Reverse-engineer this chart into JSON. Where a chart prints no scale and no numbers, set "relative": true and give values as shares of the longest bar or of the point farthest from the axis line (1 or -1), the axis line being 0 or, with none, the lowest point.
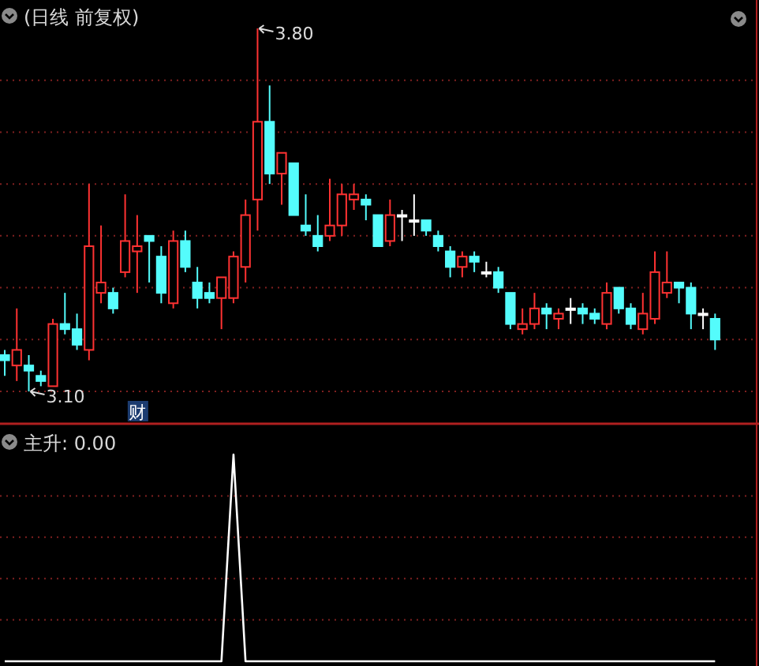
{
  "chart_data": [
    {
      "type": "candlestick",
      "title": "(日线 前复权)",
      "grid": "y",
      "categories": [
        null,
        null,
        null,
        null,
        null,
        null,
        null,
        null,
        null,
        null,
        null,
        null,
        null,
        null,
        null,
        null,
        null,
        null,
        null,
        null,
        null,
        null,
        null,
        null,
        null,
        null,
        null,
        null,
        null,
        null,
        null,
        null,
        null,
        null,
        null,
        null,
        null,
        null,
        null,
        null,
        null,
        null,
        null,
        null,
        null,
        null,
        null,
        null,
        null,
        null,
        null,
        null,
        null,
        null,
        null,
        null,
        null,
        null,
        null,
        null
      ],
      "yticks": [
        {
          "value": 3.1,
          "label": null
        },
        {
          "value": 3.2,
          "label": null
        },
        {
          "value": 3.3,
          "label": null
        },
        {
          "value": 3.4,
          "label": null
        },
        {
          "value": 3.5,
          "label": null
        },
        {
          "value": 3.6,
          "label": null
        },
        {
          "value": 3.7,
          "label": null
        }
      ],
      "ohlc": [
        [
          3.17,
          3.18,
          3.13,
          3.16
        ],
        [
          3.15,
          3.26,
          3.12,
          3.18
        ],
        [
          3.15,
          3.17,
          3.1,
          3.14
        ],
        [
          3.13,
          3.14,
          3.11,
          3.12
        ],
        [
          3.11,
          3.24,
          3.11,
          3.23
        ],
        [
          3.23,
          3.29,
          3.21,
          3.22
        ],
        [
          3.22,
          3.25,
          3.18,
          3.19
        ],
        [
          3.18,
          3.5,
          3.16,
          3.38
        ],
        [
          3.29,
          3.42,
          3.27,
          3.31
        ],
        [
          3.29,
          3.3,
          3.25,
          3.26
        ],
        [
          3.33,
          3.48,
          3.32,
          3.39
        ],
        [
          3.37,
          3.44,
          3.29,
          3.38
        ],
        [
          3.4,
          3.4,
          3.31,
          3.39
        ],
        [
          3.36,
          3.38,
          3.27,
          3.29
        ],
        [
          3.27,
          3.41,
          3.26,
          3.39
        ],
        [
          3.39,
          3.41,
          3.33,
          3.34
        ],
        [
          3.31,
          3.34,
          3.26,
          3.28
        ],
        [
          3.29,
          3.31,
          3.27,
          3.28
        ],
        [
          3.28,
          3.32,
          3.22,
          3.32
        ],
        [
          3.28,
          3.37,
          3.27,
          3.36
        ],
        [
          3.34,
          3.47,
          3.31,
          3.44
        ],
        [
          3.47,
          3.8,
          3.41,
          3.62
        ],
        [
          3.62,
          3.69,
          3.5,
          3.52
        ],
        [
          3.52,
          3.56,
          3.46,
          3.56
        ],
        [
          3.54,
          3.54,
          3.44,
          3.44
        ],
        [
          3.42,
          3.48,
          3.4,
          3.41
        ],
        [
          3.4,
          3.44,
          3.37,
          3.38
        ],
        [
          3.4,
          3.51,
          3.39,
          3.42
        ],
        [
          3.42,
          3.5,
          3.4,
          3.48
        ],
        [
          3.47,
          3.5,
          3.45,
          3.48
        ],
        [
          3.47,
          3.48,
          3.43,
          3.46
        ],
        [
          3.44,
          3.44,
          3.38,
          3.38
        ],
        [
          3.39,
          3.47,
          3.38,
          3.44
        ],
        [
          3.44,
          3.45,
          3.39,
          3.44
        ],
        [
          3.43,
          3.48,
          3.4,
          3.43
        ],
        [
          3.43,
          3.43,
          3.4,
          3.41
        ],
        [
          3.4,
          3.41,
          3.37,
          3.38
        ],
        [
          3.37,
          3.38,
          3.32,
          3.34
        ],
        [
          3.34,
          3.37,
          3.32,
          3.36
        ],
        [
          3.36,
          3.37,
          3.33,
          3.35
        ],
        [
          3.33,
          3.35,
          3.32,
          3.33
        ],
        [
          3.33,
          3.34,
          3.29,
          3.3
        ],
        [
          3.29,
          3.29,
          3.22,
          3.23
        ],
        [
          3.22,
          3.26,
          3.21,
          3.23
        ],
        [
          3.23,
          3.29,
          3.22,
          3.26
        ],
        [
          3.26,
          3.27,
          3.22,
          3.25
        ],
        [
          3.24,
          3.26,
          3.22,
          3.25
        ],
        [
          3.26,
          3.28,
          3.23,
          3.26
        ],
        [
          3.26,
          3.27,
          3.23,
          3.25
        ],
        [
          3.25,
          3.26,
          3.23,
          3.24
        ],
        [
          3.23,
          3.31,
          3.22,
          3.29
        ],
        [
          3.3,
          3.3,
          3.25,
          3.26
        ],
        [
          3.26,
          3.27,
          3.22,
          3.23
        ],
        [
          3.22,
          3.29,
          3.21,
          3.25
        ],
        [
          3.24,
          3.37,
          3.23,
          3.33
        ],
        [
          3.29,
          3.37,
          3.28,
          3.31
        ],
        [
          3.31,
          3.31,
          3.27,
          3.3
        ],
        [
          3.3,
          3.31,
          3.22,
          3.25
        ],
        [
          3.25,
          3.26,
          3.22,
          3.25
        ],
        [
          3.24,
          3.25,
          3.18,
          3.2
        ]
      ],
      "colors": [
        "#54fcfc",
        "#ff3232",
        "#54fcfc",
        "#54fcfc",
        "#ff3232",
        "#54fcfc",
        "#54fcfc",
        "#ff3232",
        "#ff3232",
        "#54fcfc",
        "#ff3232",
        "#ff3232",
        "#54fcfc",
        "#54fcfc",
        "#ff3232",
        "#54fcfc",
        "#54fcfc",
        "#54fcfc",
        "#ff3232",
        "#ff3232",
        "#ff3232",
        "#ff3232",
        "#54fcfc",
        "#ff3232",
        "#54fcfc",
        "#54fcfc",
        "#54fcfc",
        "#ff3232",
        "#ff3232",
        "#ff3232",
        "#54fcfc",
        "#54fcfc",
        "#ff3232",
        "#ffffff",
        "#ffffff",
        "#54fcfc",
        "#54fcfc",
        "#54fcfc",
        "#ff3232",
        "#54fcfc",
        "#ffffff",
        "#54fcfc",
        "#54fcfc",
        "#ff3232",
        "#ff3232",
        "#54fcfc",
        "#ff3232",
        "#ffffff",
        "#54fcfc",
        "#54fcfc",
        "#ff3232",
        "#54fcfc",
        "#54fcfc",
        "#ff3232",
        "#ff3232",
        "#ff3232",
        "#54fcfc",
        "#54fcfc",
        "#ffffff",
        "#54fcfc"
      ],
      "annotations": [
        "3.80",
        "3.10",
        "财"
      ]
    },
    {
      "type": "line",
      "title": "主升: 0.00",
      "relative": true,
      "ref_lines": [
        {
          "axis": "y",
          "value": 0.2,
          "color": "#802020",
          "line_style": "dotted"
        },
        {
          "axis": "y",
          "value": 0.4,
          "color": "#802020",
          "line_style": "dotted"
        },
        {
          "axis": "y",
          "value": 0.6,
          "color": "#802020",
          "line_style": "dotted"
        },
        {
          "axis": "y",
          "value": 0.8,
          "color": "#802020",
          "line_style": "dotted"
        }
      ],
      "categories": [
        null,
        null,
        null,
        null,
        null,
        null,
        null,
        null,
        null,
        null,
        null,
        null,
        null,
        null,
        null,
        null,
        null,
        null,
        null,
        null,
        null,
        null,
        null,
        null,
        null,
        null,
        null,
        null,
        null,
        null,
        null,
        null,
        null,
        null,
        null,
        null,
        null,
        null,
        null,
        null,
        null,
        null,
        null,
        null,
        null,
        null,
        null,
        null,
        null,
        null,
        null,
        null,
        null,
        null,
        null,
        null,
        null,
        null,
        null,
        null
      ],
      "series": [
        {
          "color": "#ffffff",
          "values": [
            0,
            0,
            0,
            0,
            0,
            0,
            0,
            0,
            0,
            0,
            0,
            0,
            0,
            0,
            0,
            0,
            0,
            0,
            0,
            1,
            0,
            0,
            0,
            0,
            0,
            0,
            0,
            0,
            0,
            0,
            0,
            0,
            0,
            0,
            0,
            0,
            0,
            0,
            0,
            0,
            0,
            0,
            0,
            0,
            0,
            0,
            0,
            0,
            0,
            0,
            0,
            0,
            0,
            0,
            0,
            0,
            0,
            0,
            0,
            0
          ]
        }
      ]
    }
  ]
}
